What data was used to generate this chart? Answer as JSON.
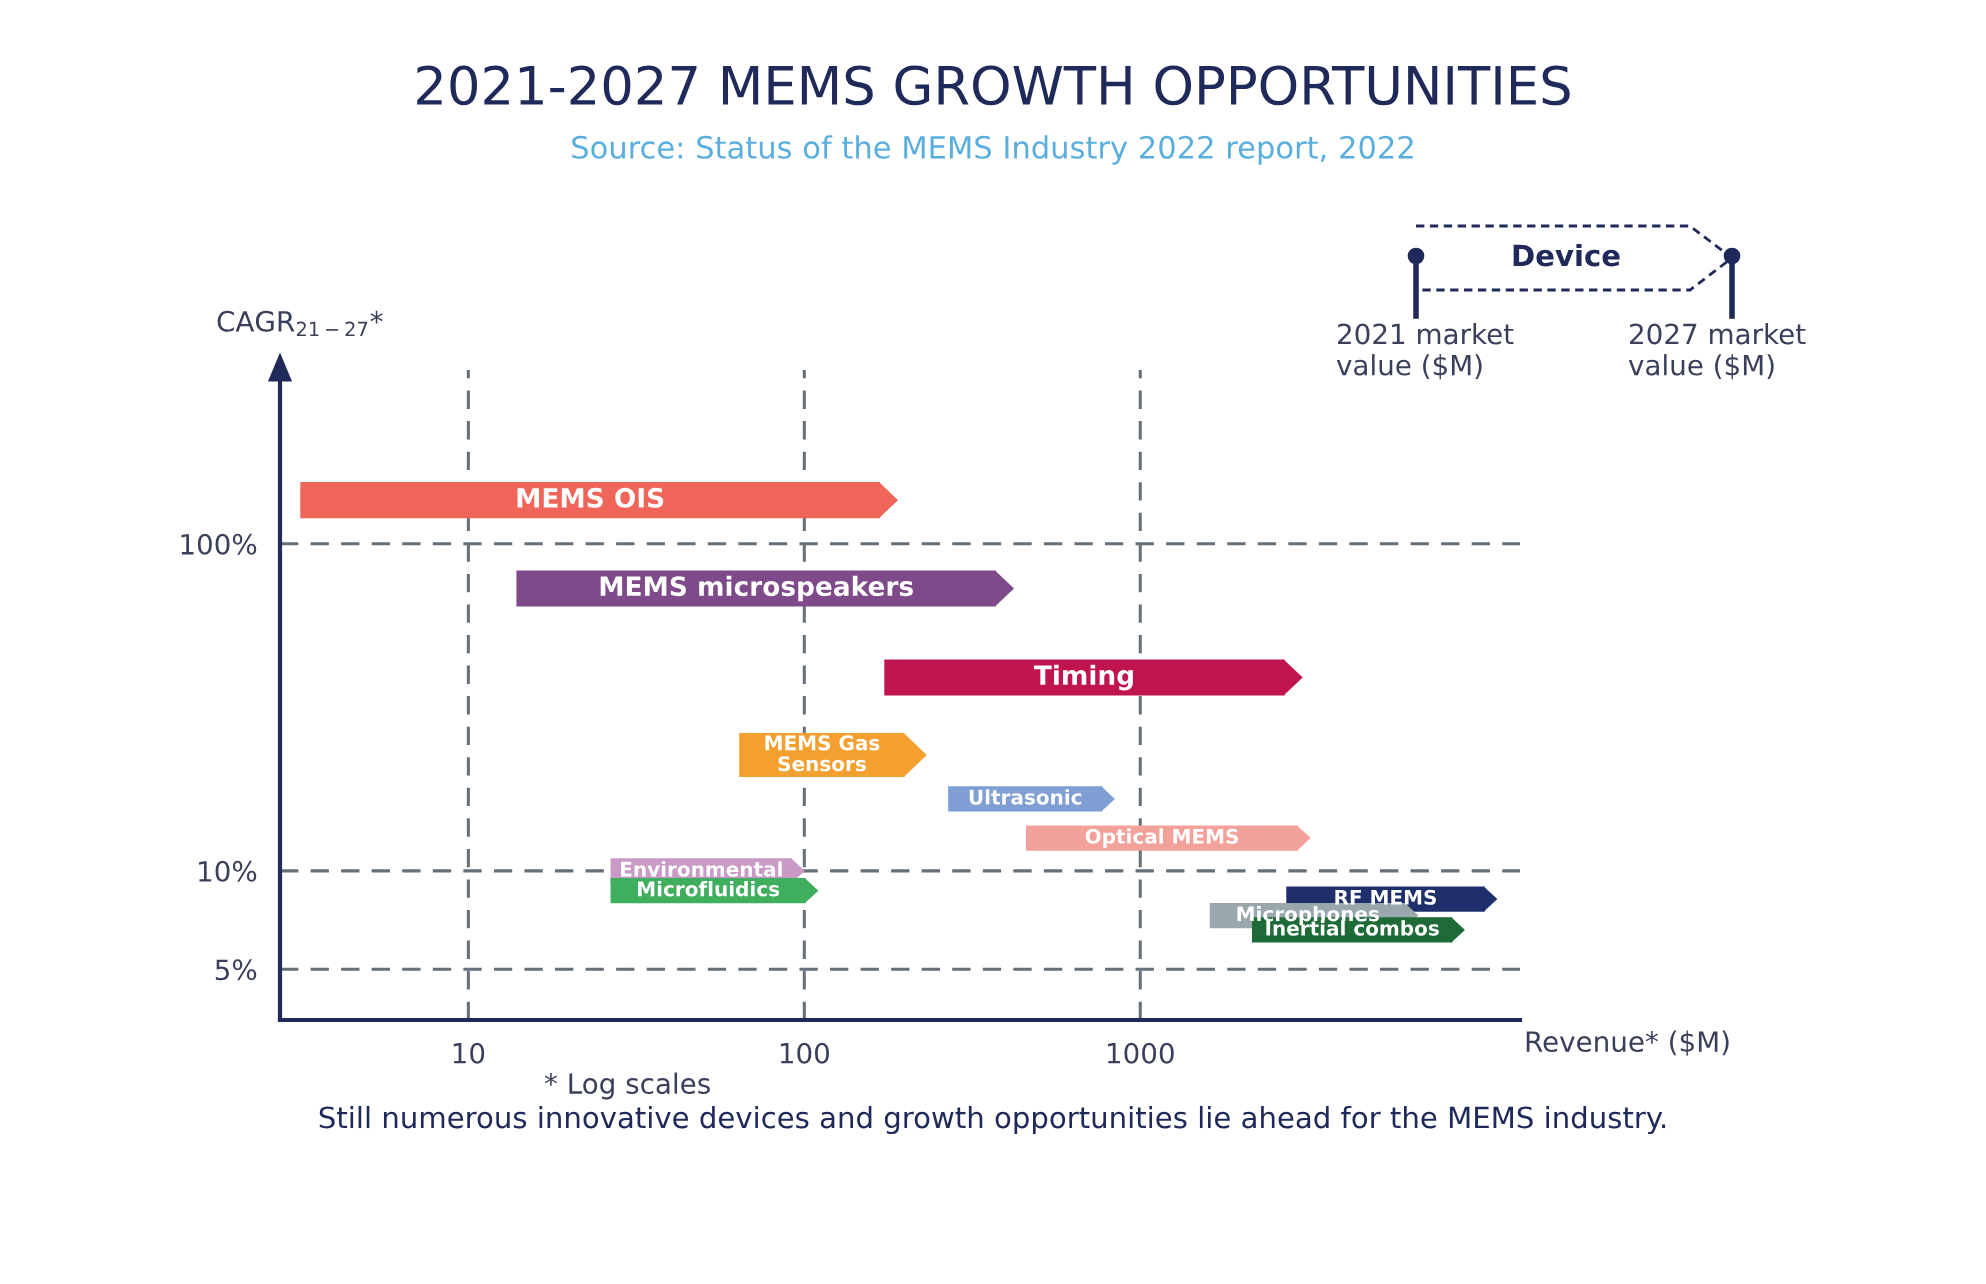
{
  "chart_data": {
    "type": "line",
    "title": "2021-2027 MEMS GROWTH OPPORTUNITIES",
    "subtitle": "Source: Status of the MEMS Industry 2022 report, 2022",
    "xlabel": "Revenue* ($M)",
    "ylabel": "CAGR$_{21−27}$*",
    "log": "xy",
    "xlim": [
      2.75,
      13500
    ],
    "ylim": [
      3.5,
      340
    ],
    "xticks": [
      10,
      100,
      1000
    ],
    "yticks": [
      {
        "value": 5,
        "label": "5%"
      },
      {
        "value": 10,
        "label": "10%"
      },
      {
        "value": 100,
        "label": "100%"
      }
    ],
    "grid": true,
    "series": [
      {
        "name": "MEMS OIS",
        "color": "#f0655a",
        "x": [
          3.16,
          168
        ],
        "values": [
          136,
          136
        ]
      },
      {
        "name": "MEMS microspeakers",
        "color": "#7f4a8a",
        "x": [
          13.9,
          372
        ],
        "values": [
          73,
          73
        ]
      },
      {
        "name": "Timing",
        "color": "#c0144c",
        "x": [
          173,
          2690
        ],
        "values": [
          39,
          39
        ]
      },
      {
        "name": "MEMS Gas\nSensors",
        "color": "#f4a030",
        "x": [
          64,
          199
        ],
        "values": [
          22.6,
          22.6
        ]
      },
      {
        "name": "Ultrasonic",
        "color": "#7f9fd4",
        "x": [
          268,
          771
        ],
        "values": [
          16.6,
          16.6
        ]
      },
      {
        "name": "Optical MEMS",
        "color": "#f2a29a",
        "x": [
          457,
          2950
        ],
        "values": [
          12.6,
          12.6
        ]
      },
      {
        "name": "Environmental",
        "color": "#c99ac6",
        "x": [
          26.5,
          92
        ],
        "values": [
          10,
          10
        ]
      },
      {
        "name": "Microfluidics",
        "color": "#3fae5e",
        "x": [
          26.5,
          101
        ],
        "values": [
          8.7,
          8.7
        ]
      },
      {
        "name": "RF MEMS",
        "color": "#1f2f6b",
        "x": [
          2720,
          10600
        ],
        "values": [
          8.2,
          8.2
        ]
      },
      {
        "name": "Microphones",
        "color": "#9aa8ae",
        "x": [
          1610,
          6170
        ],
        "values": [
          7.3,
          7.3
        ]
      },
      {
        "name": "Inertial combos",
        "color": "#1e6b38",
        "x": [
          2150,
          8490
        ],
        "values": [
          6.6,
          6.6
        ]
      }
    ],
    "annotations": [
      "Device",
      "2021 market\nvalue ($M)",
      "2027 market\nvalue ($M)",
      "* Log scales",
      "Still numerous innovative devices and growth opportunities lie ahead for the MEMS industry."
    ]
  }
}
